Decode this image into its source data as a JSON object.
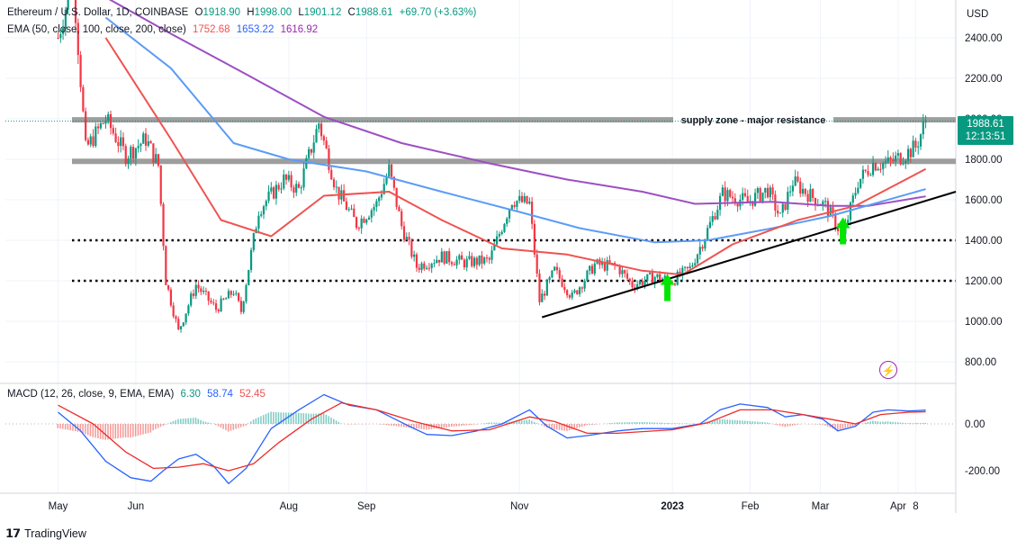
{
  "legend": {
    "symbol": "Ethereum / U.S. Dollar, 1D, COINBASE",
    "open_label": "O",
    "open": "1918.90",
    "high_label": "H",
    "high": "1998.00",
    "low_label": "L",
    "low": "1901.12",
    "close_label": "C",
    "close": "1988.61",
    "change": "+69.70 (+3.63%)",
    "ema_title": "EMA (50, close, 100, close, 200, close)",
    "ema50": "1752.68",
    "ema100": "1653.22",
    "ema200": "1616.92",
    "macd_title": "MACD (12, 26, close, 9, EMA, EMA)",
    "macd_hist": "6.30",
    "macd_line": "58.74",
    "macd_signal": "52.45"
  },
  "price_badge": {
    "price": "1988.61",
    "countdown": "12:13:51"
  },
  "currency": "USD",
  "annotation": "supply zone - major resistance",
  "brand": "TradingView",
  "colors": {
    "up": "#089981",
    "down": "#f23645",
    "ema50": "#ef5350",
    "ema100": "#5b9cf6",
    "ema200": "#9c4fc2",
    "macd": "#2962ff",
    "signal": "#ef2a2a",
    "zone": "#9e9e9e"
  },
  "chart_data": [
    {
      "type": "candlestick",
      "y_axis_ticks": [
        "2400.00",
        "2200.00",
        "2000.00",
        "1800.00",
        "1600.00",
        "1400.00",
        "1200.00",
        "1000.00",
        "800.00"
      ],
      "x_axis_ticks": [
        "May",
        "Jun",
        "Aug",
        "Sep",
        "Nov",
        "2023",
        "Feb",
        "Mar",
        "Apr",
        "8"
      ],
      "ylim": [
        700,
        2520
      ],
      "resistance_zones": [
        1995,
        1790
      ],
      "support_levels": [
        1400,
        1200
      ],
      "trendline": [
        {
          "x": "2022-11-10",
          "y": 1020
        },
        {
          "x": "2023-04-24",
          "y": 1640
        }
      ],
      "arrows": [
        {
          "x": "2022-12-30",
          "y": 1100
        },
        {
          "x": "2023-03-10",
          "y": 1380
        }
      ],
      "path": [
        [
          "2022-05-01",
          2400
        ],
        [
          "2022-05-07",
          2700
        ],
        [
          "2022-05-12",
          1850
        ],
        [
          "2022-05-20",
          2000
        ],
        [
          "2022-05-28",
          1820
        ],
        [
          "2022-06-05",
          1900
        ],
        [
          "2022-06-10",
          1770
        ],
        [
          "2022-06-13",
          1200
        ],
        [
          "2022-06-18",
          950
        ],
        [
          "2022-06-25",
          1180
        ],
        [
          "2022-07-03",
          1060
        ],
        [
          "2022-07-10",
          1150
        ],
        [
          "2022-07-13",
          1050
        ],
        [
          "2022-07-20",
          1550
        ],
        [
          "2022-07-30",
          1700
        ],
        [
          "2022-08-05",
          1650
        ],
        [
          "2022-08-13",
          1980
        ],
        [
          "2022-08-20",
          1650
        ],
        [
          "2022-08-28",
          1480
        ],
        [
          "2022-09-05",
          1580
        ],
        [
          "2022-09-10",
          1750
        ],
        [
          "2022-09-15",
          1470
        ],
        [
          "2022-09-21",
          1270
        ],
        [
          "2022-10-01",
          1320
        ],
        [
          "2022-10-10",
          1290
        ],
        [
          "2022-10-20",
          1300
        ],
        [
          "2022-10-29",
          1600
        ],
        [
          "2022-11-05",
          1580
        ],
        [
          "2022-11-09",
          1100
        ],
        [
          "2022-11-15",
          1250
        ],
        [
          "2022-11-22",
          1120
        ],
        [
          "2022-12-01",
          1280
        ],
        [
          "2022-12-10",
          1270
        ],
        [
          "2022-12-16",
          1180
        ],
        [
          "2022-12-25",
          1220
        ],
        [
          "2023-01-01",
          1200
        ],
        [
          "2023-01-08",
          1260
        ],
        [
          "2023-01-14",
          1420
        ],
        [
          "2023-01-21",
          1630
        ],
        [
          "2023-01-31",
          1590
        ],
        [
          "2023-02-08",
          1650
        ],
        [
          "2023-02-13",
          1510
        ],
        [
          "2023-02-18",
          1690
        ],
        [
          "2023-02-25",
          1620
        ],
        [
          "2023-03-03",
          1570
        ],
        [
          "2023-03-10",
          1420
        ],
        [
          "2023-03-16",
          1690
        ],
        [
          "2023-03-22",
          1780
        ],
        [
          "2023-03-28",
          1780
        ],
        [
          "2023-04-03",
          1820
        ],
        [
          "2023-04-08",
          1860
        ],
        [
          "2023-04-12",
          1990
        ]
      ],
      "ema50_path": [
        [
          "2022-05-20",
          2400
        ],
        [
          "2022-06-15",
          1900
        ],
        [
          "2022-07-05",
          1500
        ],
        [
          "2022-07-25",
          1420
        ],
        [
          "2022-08-15",
          1620
        ],
        [
          "2022-09-10",
          1640
        ],
        [
          "2022-10-01",
          1500
        ],
        [
          "2022-10-25",
          1360
        ],
        [
          "2022-11-20",
          1330
        ],
        [
          "2022-12-20",
          1250
        ],
        [
          "2023-01-05",
          1230
        ],
        [
          "2023-01-25",
          1380
        ],
        [
          "2023-02-20",
          1500
        ],
        [
          "2023-03-15",
          1570
        ],
        [
          "2023-04-12",
          1752
        ]
      ],
      "ema100_path": [
        [
          "2022-05-20",
          2500
        ],
        [
          "2022-06-15",
          2250
        ],
        [
          "2022-07-10",
          1880
        ],
        [
          "2022-08-01",
          1800
        ],
        [
          "2022-09-01",
          1740
        ],
        [
          "2022-10-01",
          1640
        ],
        [
          "2022-11-01",
          1540
        ],
        [
          "2022-11-25",
          1460
        ],
        [
          "2022-12-25",
          1390
        ],
        [
          "2023-01-15",
          1400
        ],
        [
          "2023-02-10",
          1460
        ],
        [
          "2023-03-05",
          1520
        ],
        [
          "2023-04-12",
          1653
        ]
      ],
      "ema200_path": [
        [
          "2022-05-20",
          2600
        ],
        [
          "2022-06-15",
          2420
        ],
        [
          "2022-07-15",
          2220
        ],
        [
          "2022-08-15",
          2010
        ],
        [
          "2022-09-15",
          1880
        ],
        [
          "2022-10-20",
          1780
        ],
        [
          "2022-11-20",
          1700
        ],
        [
          "2022-12-20",
          1640
        ],
        [
          "2023-01-10",
          1580
        ],
        [
          "2023-02-10",
          1590
        ],
        [
          "2023-03-05",
          1570
        ],
        [
          "2023-03-20",
          1570
        ],
        [
          "2023-04-12",
          1617
        ]
      ]
    },
    {
      "type": "line",
      "title": "MACD (12, 26, close, 9, EMA, EMA)",
      "y_axis_ticks": [
        "0.00",
        "-200.00"
      ],
      "ylim": [
        -300,
        160
      ],
      "macd_path": [
        [
          "2022-05-01",
          50
        ],
        [
          "2022-05-10",
          -30
        ],
        [
          "2022-05-20",
          -160
        ],
        [
          "2022-05-30",
          -230
        ],
        [
          "2022-06-07",
          -245
        ],
        [
          "2022-06-12",
          -200
        ],
        [
          "2022-06-18",
          -150
        ],
        [
          "2022-06-25",
          -130
        ],
        [
          "2022-07-02",
          -180
        ],
        [
          "2022-07-08",
          -255
        ],
        [
          "2022-07-15",
          -190
        ],
        [
          "2022-07-25",
          -20
        ],
        [
          "2022-08-05",
          60
        ],
        [
          "2022-08-15",
          125
        ],
        [
          "2022-08-25",
          80
        ],
        [
          "2022-09-05",
          60
        ],
        [
          "2022-09-18",
          -10
        ],
        [
          "2022-09-25",
          -45
        ],
        [
          "2022-10-05",
          -50
        ],
        [
          "2022-10-15",
          -30
        ],
        [
          "2022-10-25",
          0
        ],
        [
          "2022-11-05",
          60
        ],
        [
          "2022-11-12",
          -10
        ],
        [
          "2022-11-20",
          -60
        ],
        [
          "2022-11-28",
          -50
        ],
        [
          "2022-12-10",
          -30
        ],
        [
          "2022-12-20",
          -20
        ],
        [
          "2023-01-01",
          -20
        ],
        [
          "2023-01-12",
          0
        ],
        [
          "2023-01-20",
          60
        ],
        [
          "2023-01-28",
          85
        ],
        [
          "2023-02-08",
          70
        ],
        [
          "2023-02-15",
          30
        ],
        [
          "2023-02-22",
          40
        ],
        [
          "2023-03-02",
          20
        ],
        [
          "2023-03-08",
          -30
        ],
        [
          "2023-03-15",
          -10
        ],
        [
          "2023-03-22",
          50
        ],
        [
          "2023-03-28",
          60
        ],
        [
          "2023-04-05",
          55
        ],
        [
          "2023-04-12",
          59
        ]
      ],
      "signal_path": [
        [
          "2022-05-01",
          80
        ],
        [
          "2022-05-15",
          0
        ],
        [
          "2022-05-28",
          -120
        ],
        [
          "2022-06-08",
          -190
        ],
        [
          "2022-06-18",
          -185
        ],
        [
          "2022-06-28",
          -170
        ],
        [
          "2022-07-08",
          -200
        ],
        [
          "2022-07-18",
          -170
        ],
        [
          "2022-07-28",
          -80
        ],
        [
          "2022-08-10",
          20
        ],
        [
          "2022-08-22",
          90
        ],
        [
          "2022-09-05",
          60
        ],
        [
          "2022-09-20",
          10
        ],
        [
          "2022-10-05",
          -30
        ],
        [
          "2022-10-20",
          -25
        ],
        [
          "2022-11-05",
          30
        ],
        [
          "2022-11-15",
          10
        ],
        [
          "2022-11-28",
          -40
        ],
        [
          "2022-12-10",
          -40
        ],
        [
          "2023-01-01",
          -25
        ],
        [
          "2023-01-15",
          5
        ],
        [
          "2023-01-28",
          60
        ],
        [
          "2023-02-10",
          60
        ],
        [
          "2023-02-22",
          40
        ],
        [
          "2023-03-05",
          20
        ],
        [
          "2023-03-15",
          0
        ],
        [
          "2023-03-25",
          40
        ],
        [
          "2023-04-05",
          50
        ],
        [
          "2023-04-12",
          52
        ]
      ]
    }
  ]
}
